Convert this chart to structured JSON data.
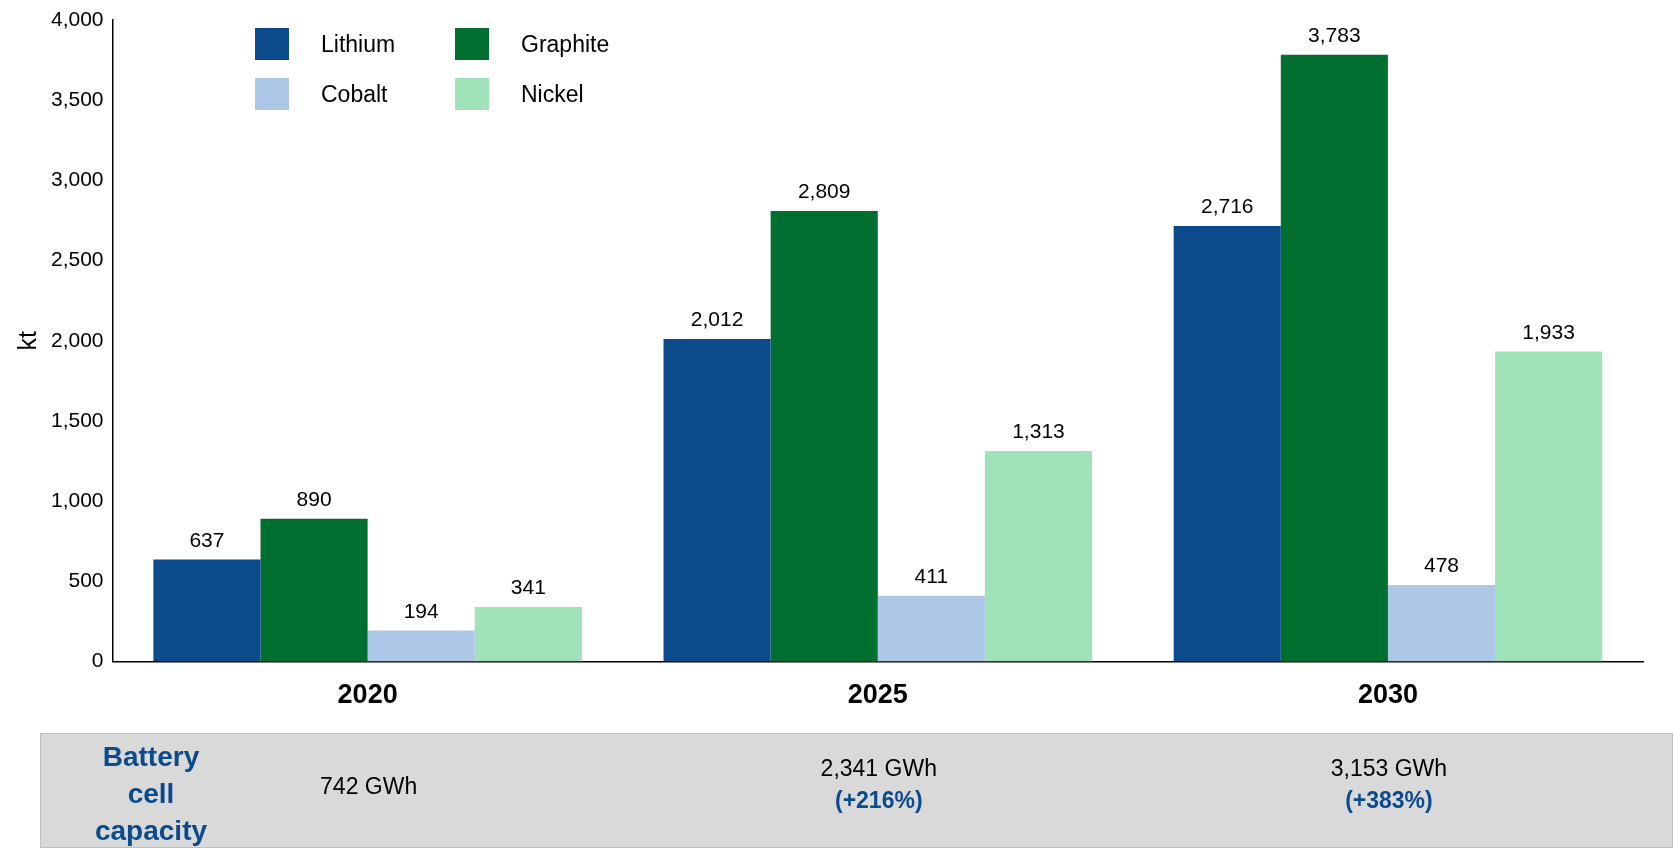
{
  "chart_data": {
    "type": "bar",
    "ylabel": "kt",
    "categories": [
      "2020",
      "2025",
      "2030"
    ],
    "series": [
      {
        "name": "Lithium",
        "color": "#0b4a8b",
        "values": [
          637,
          2012,
          2716
        ],
        "value_labels": [
          "637",
          "2,012",
          "2,716"
        ]
      },
      {
        "name": "Graphite",
        "color": "#006f2f",
        "values": [
          890,
          2809,
          3783
        ],
        "value_labels": [
          "890",
          "2,809",
          "3,783"
        ]
      },
      {
        "name": "Cobalt",
        "color": "#adc8e6",
        "values": [
          194,
          411,
          478
        ],
        "value_labels": [
          "194",
          "411",
          "478"
        ]
      },
      {
        "name": "Nickel",
        "color": "#a0e3bb",
        "values": [
          341,
          1313,
          1933
        ],
        "value_labels": [
          "341",
          "1,313",
          "1,933"
        ]
      }
    ],
    "ylim": [
      0,
      4000
    ],
    "yticks": [
      {
        "value": 0,
        "label": "0"
      },
      {
        "value": 500,
        "label": "500"
      },
      {
        "value": 1000,
        "label": "1,000"
      },
      {
        "value": 1500,
        "label": "1,500"
      },
      {
        "value": 2000,
        "label": "2,000"
      },
      {
        "value": 2500,
        "label": "2,500"
      },
      {
        "value": 3000,
        "label": "3,000"
      },
      {
        "value": 3500,
        "label": "3,500"
      },
      {
        "value": 4000,
        "label": "4,000"
      }
    ],
    "grid": false,
    "legend": "top left",
    "annotations": [
      "Battery cell capacity",
      "742 GWh",
      "2,341 GWh",
      "(+216%)",
      "3,153 GWh",
      "(+383%)"
    ]
  }
}
